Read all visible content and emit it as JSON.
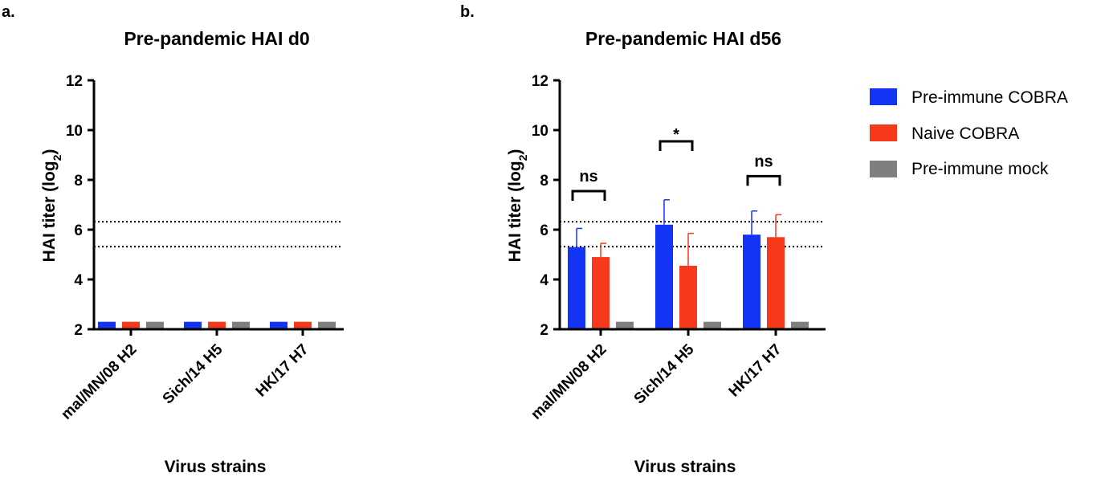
{
  "panels": {
    "a": "a.",
    "b": "b."
  },
  "colors": {
    "preimmune_cobra": "#1434f5",
    "naive_cobra": "#f5391a",
    "preimmune_mock": "#7f7f7f",
    "axis": "#000000"
  },
  "chart_data": [
    {
      "type": "bar",
      "panel": "a.",
      "title": "Pre-pandemic HAI d0",
      "xlabel": "Virus strains",
      "ylabel": "HAI titer (log",
      "ylabel_sub": "2",
      "ylabel_end": ")",
      "ylim": [
        2,
        12
      ],
      "yticks": [
        "2",
        "4",
        "6",
        "8",
        "10",
        "12"
      ],
      "categories": [
        "mal/MN/08 H2",
        "Sich/14 H5",
        "HK/17 H7"
      ],
      "reference_lines": [
        6.32,
        5.32
      ],
      "series": [
        {
          "name": "Pre-immune COBRA",
          "color": "#1434f5",
          "values": [
            2.3,
            2.3,
            2.3
          ],
          "errors": [
            0,
            0,
            0
          ]
        },
        {
          "name": "Naive COBRA",
          "color": "#f5391a",
          "values": [
            2.3,
            2.3,
            2.3
          ],
          "errors": [
            0,
            0,
            0
          ]
        },
        {
          "name": "Pre-immune mock",
          "color": "#7f7f7f",
          "values": [
            2.3,
            2.3,
            2.3
          ],
          "errors": [
            0,
            0,
            0
          ]
        }
      ],
      "significance": []
    },
    {
      "type": "bar",
      "panel": "b.",
      "title": "Pre-pandemic HAI d56",
      "xlabel": "Virus strains",
      "ylabel": "HAI titer (log",
      "ylabel_sub": "2",
      "ylabel_end": ")",
      "ylim": [
        2,
        12
      ],
      "yticks": [
        "2",
        "4",
        "6",
        "8",
        "10",
        "12"
      ],
      "categories": [
        "mal/MN/08 H2",
        "Sich/14 H5",
        "HK/17 H7"
      ],
      "reference_lines": [
        6.32,
        5.32
      ],
      "series": [
        {
          "name": "Pre-immune COBRA",
          "color": "#1434f5",
          "values": [
            5.3,
            6.2,
            5.8
          ],
          "errors": [
            0.75,
            1.0,
            0.95
          ]
        },
        {
          "name": "Naive COBRA",
          "color": "#f5391a",
          "values": [
            4.9,
            4.55,
            5.7
          ],
          "errors": [
            0.55,
            1.3,
            0.9
          ]
        },
        {
          "name": "Pre-immune mock",
          "color": "#7f7f7f",
          "values": [
            2.3,
            2.3,
            2.3
          ],
          "errors": [
            0,
            0,
            0
          ]
        }
      ],
      "significance": [
        {
          "category": "mal/MN/08 H2",
          "label": "ns",
          "level": 7.55
        },
        {
          "category": "Sich/14 H5",
          "label": "*",
          "level": 9.55
        },
        {
          "category": "HK/17 H7",
          "label": "ns",
          "level": 8.15
        }
      ]
    }
  ],
  "legend": {
    "position": "right",
    "items": [
      {
        "label": "Pre-immune COBRA",
        "color": "#1434f5"
      },
      {
        "label": "Naive COBRA",
        "color": "#f5391a"
      },
      {
        "label": "Pre-immune mock",
        "color": "#7f7f7f"
      }
    ]
  }
}
